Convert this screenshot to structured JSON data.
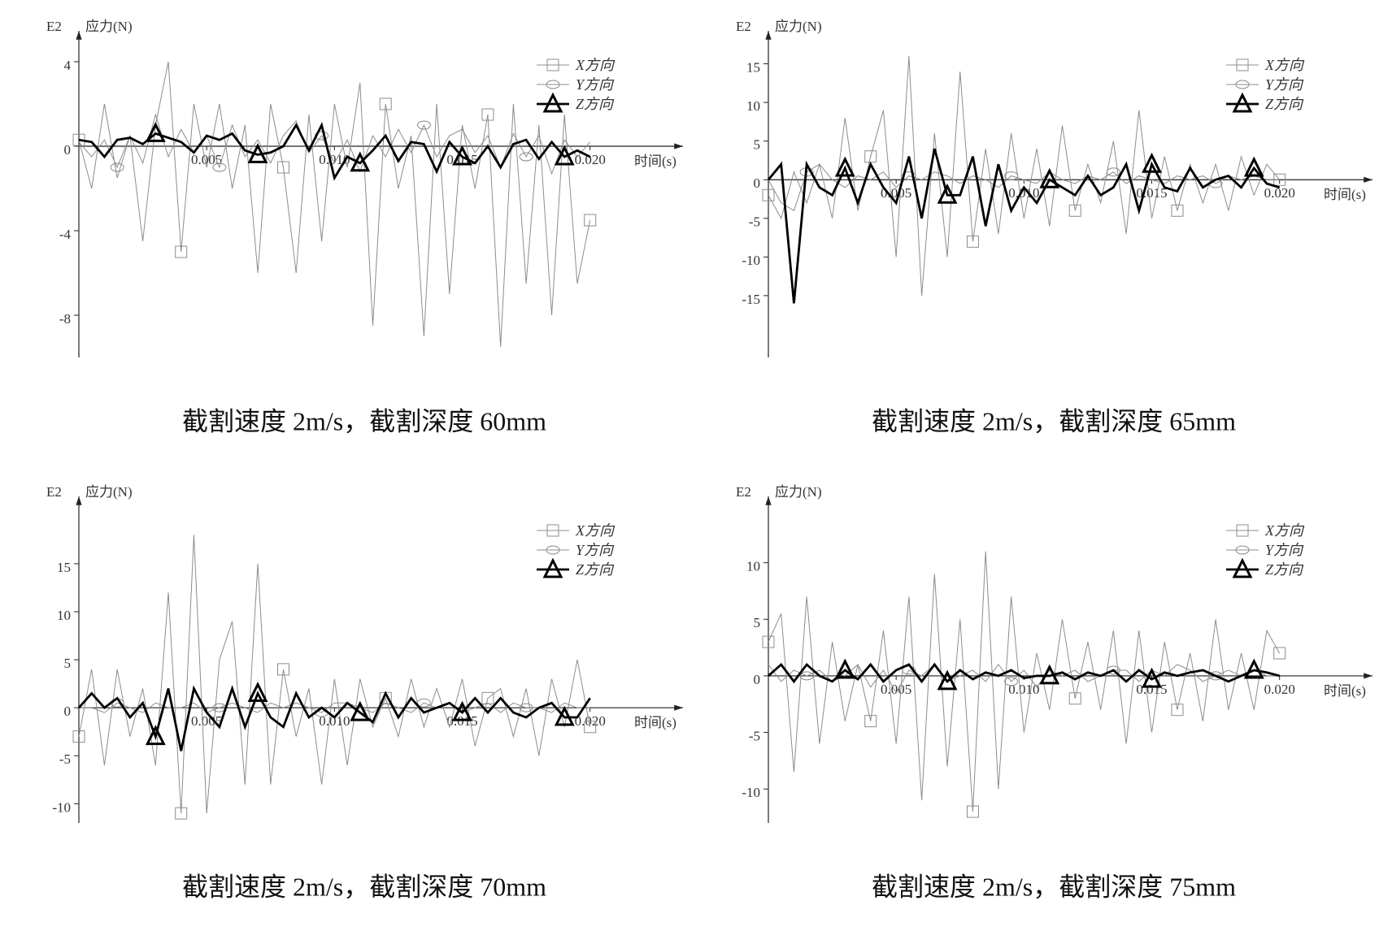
{
  "chart_data": [
    {
      "type": "line",
      "caption": "截割速度 2m/s，截割深度 60mm",
      "y_unit": "E2",
      "ylabel": "应力(N)",
      "xlabel": "时间(s)",
      "legend": "upper right",
      "x": [
        0,
        0.0005,
        0.001,
        0.0015,
        0.002,
        0.0025,
        0.003,
        0.0035,
        0.004,
        0.0045,
        0.005,
        0.0055,
        0.006,
        0.0065,
        0.007,
        0.0075,
        0.008,
        0.0085,
        0.009,
        0.0095,
        0.01,
        0.0105,
        0.011,
        0.0115,
        0.012,
        0.0125,
        0.013,
        0.0135,
        0.014,
        0.0145,
        0.015,
        0.0155,
        0.016,
        0.0165,
        0.017,
        0.0175,
        0.018,
        0.0185,
        0.019,
        0.0195,
        0.02
      ],
      "xlim": [
        0,
        0.023
      ],
      "xticks": [
        0.005,
        {
          "value": 0.01,
          "label": "0.010"
        },
        0.015,
        {
          "value": 0.02,
          "label": "0.020"
        }
      ],
      "ylim": [
        -10,
        5
      ],
      "yticks": [
        4,
        0,
        -4,
        -8
      ],
      "series": [
        {
          "name": "X方向",
          "color": "#8c8c8c",
          "marker": "square",
          "values": [
            0.3,
            -2,
            2,
            -1.5,
            0.5,
            -4.5,
            1,
            4,
            -5,
            2,
            -1,
            2,
            -2,
            1,
            -6,
            2,
            -1,
            -6,
            1.5,
            -4.5,
            2,
            -1,
            3,
            -8.5,
            2,
            -2,
            0.5,
            -9,
            2,
            -7,
            1,
            -2,
            1.5,
            -9.5,
            2,
            -6.5,
            1,
            -8,
            1.5,
            -6.5,
            -3.5
          ]
        },
        {
          "name": "Y方向",
          "color": "#8c8c8c",
          "marker": "circle",
          "values": [
            0.2,
            -0.5,
            0.3,
            -1,
            0.5,
            -0.8,
            1.5,
            -0.5,
            0.8,
            -0.3,
            0.5,
            -1,
            1,
            -0.5,
            0.3,
            -0.8,
            0.5,
            1.2,
            -0.3,
            0.5,
            -0.8,
            0.3,
            -1.2,
            0.5,
            -0.5,
            0.8,
            -0.3,
            1,
            -0.5,
            0.5,
            0.8,
            -0.3,
            0.5,
            -1,
            0.6,
            -0.5,
            0.5,
            -1.3,
            0.3,
            -0.5,
            0.2
          ]
        },
        {
          "name": "Z方向",
          "color": "#000000",
          "marker": "triangle",
          "values": [
            0.3,
            0.2,
            -0.5,
            0.3,
            0.4,
            0.1,
            0.6,
            0.4,
            0.2,
            -0.3,
            0.5,
            0.3,
            0.6,
            -0.2,
            -0.4,
            -0.3,
            0,
            1,
            -0.2,
            1,
            -1.5,
            -0.5,
            -0.8,
            -0.2,
            0.5,
            -0.7,
            0.2,
            0.1,
            -1.2,
            0.2,
            -0.5,
            -0.8,
            0,
            -1,
            0.1,
            0.3,
            -0.6,
            0.2,
            -0.5,
            -0.2,
            -0.5
          ]
        }
      ]
    },
    {
      "type": "line",
      "caption": "截割速度 2m/s，截割深度 65mm",
      "y_unit": "E2",
      "ylabel": "应力(N)",
      "xlabel": "时间(s)",
      "legend": "upper right",
      "x": [
        0,
        0.0005,
        0.001,
        0.0015,
        0.002,
        0.0025,
        0.003,
        0.0035,
        0.004,
        0.0045,
        0.005,
        0.0055,
        0.006,
        0.0065,
        0.007,
        0.0075,
        0.008,
        0.0085,
        0.009,
        0.0095,
        0.01,
        0.0105,
        0.011,
        0.0115,
        0.012,
        0.0125,
        0.013,
        0.0135,
        0.014,
        0.0145,
        0.015,
        0.0155,
        0.016,
        0.0165,
        0.017,
        0.0175,
        0.018,
        0.0185,
        0.019,
        0.0195,
        0.02
      ],
      "xlim": [
        0,
        0.023
      ],
      "xticks": [
        0.005,
        {
          "value": 0.01,
          "label": "0.010"
        },
        0.015,
        {
          "value": 0.02,
          "label": "0.020"
        }
      ],
      "ylim": [
        -23,
        18
      ],
      "yticks": [
        15,
        10,
        5,
        0,
        -5,
        -10,
        -15
      ],
      "series": [
        {
          "name": "X方向",
          "color": "#8c8c8c",
          "marker": "square",
          "values": [
            -2,
            -5,
            1,
            -3,
            2,
            -5,
            8,
            -4,
            3,
            9,
            -10,
            16,
            -15,
            6,
            -10,
            14,
            -8,
            4,
            -7,
            6,
            -5,
            4,
            -6,
            7,
            -4,
            2,
            -3,
            5,
            -7,
            9,
            -5,
            3,
            -4,
            2,
            -3,
            2,
            -4,
            3,
            -2,
            2,
            0
          ]
        },
        {
          "name": "Y方向",
          "color": "#8c8c8c",
          "marker": "circle",
          "values": [
            0,
            -3,
            -4,
            1,
            2,
            0,
            -1,
            0.5,
            0,
            1,
            -1,
            0.5,
            0,
            1,
            0.5,
            -0.5,
            0.5,
            0,
            -1,
            0.5,
            0,
            -0.5,
            1,
            0,
            -0.5,
            0.5,
            0,
            1,
            -0.5,
            0.5,
            0,
            -0.5,
            0.5,
            0,
            0.5,
            -0.5,
            0.5,
            0,
            0.5,
            0,
            0
          ]
        },
        {
          "name": "Z方向",
          "color": "#000000",
          "marker": "triangle",
          "values": [
            0,
            2,
            -16,
            2,
            -1,
            -2,
            1.5,
            -3,
            2,
            -1,
            -3,
            3,
            -5,
            4,
            -2,
            -2,
            3,
            -6,
            2,
            -4,
            -1,
            -3,
            0,
            -1,
            -2,
            0.5,
            -2,
            -1,
            2,
            -4,
            2,
            -1,
            -1.5,
            1.5,
            -1,
            0,
            0.5,
            -1,
            1.5,
            -0.5,
            -1
          ]
        }
      ]
    },
    {
      "type": "line",
      "caption": "截割速度 2m/s，截割深度 70mm",
      "y_unit": "E2",
      "ylabel": "应力(N)",
      "xlabel": "时间(s)",
      "legend": "upper right",
      "x": [
        0,
        0.0005,
        0.001,
        0.0015,
        0.002,
        0.0025,
        0.003,
        0.0035,
        0.004,
        0.0045,
        0.005,
        0.0055,
        0.006,
        0.0065,
        0.007,
        0.0075,
        0.008,
        0.0085,
        0.009,
        0.0095,
        0.01,
        0.0105,
        0.011,
        0.0115,
        0.012,
        0.0125,
        0.013,
        0.0135,
        0.014,
        0.0145,
        0.015,
        0.0155,
        0.016,
        0.0165,
        0.017,
        0.0175,
        0.018,
        0.0185,
        0.019,
        0.0195,
        0.02
      ],
      "xlim": [
        0,
        0.023
      ],
      "xticks": [
        0.005,
        {
          "value": 0.01,
          "label": "0.010"
        },
        0.015,
        {
          "value": 0.02,
          "label": "0.020"
        }
      ],
      "ylim": [
        -12,
        21
      ],
      "yticks": [
        15,
        10,
        5,
        0,
        -5,
        -10
      ],
      "series": [
        {
          "name": "X方向",
          "color": "#8c8c8c",
          "marker": "square",
          "values": [
            -3,
            4,
            -6,
            4,
            -3,
            2,
            -6,
            12,
            -11,
            18,
            -11,
            5,
            9,
            -8,
            15,
            -8,
            4,
            -3,
            2,
            -8,
            3,
            -6,
            3,
            -2,
            1,
            -3,
            3,
            -2,
            2,
            -2,
            3,
            -4,
            1,
            2,
            -3,
            2,
            -5,
            3,
            -2,
            5,
            -2
          ]
        },
        {
          "name": "Y方向",
          "color": "#8c8c8c",
          "marker": "circle",
          "values": [
            0,
            0,
            -0.5,
            0.5,
            0,
            -0.5,
            0.5,
            0,
            0,
            0.5,
            -0.5,
            0,
            0.5,
            0,
            -0.5,
            0.5,
            0,
            0.5,
            0,
            -0.5,
            0.5,
            0.5,
            0,
            -0.5,
            0.5,
            0,
            -0.5,
            0.5,
            0,
            0.5,
            -0.5,
            0,
            0.5,
            -0.5,
            0.5,
            0,
            0,
            -0.5,
            0.5,
            0,
            0
          ]
        },
        {
          "name": "Z方向",
          "color": "#000000",
          "marker": "triangle",
          "values": [
            0,
            1.5,
            0,
            1,
            -1,
            0.5,
            -3,
            2,
            -4.5,
            2,
            -0.5,
            -2,
            2,
            -2,
            1.5,
            -1,
            -2,
            1.5,
            -1,
            0,
            -1,
            0.5,
            -0.5,
            -1.5,
            1.5,
            -1,
            1,
            -0.5,
            0,
            0.5,
            -0.5,
            1,
            -0.5,
            1,
            -0.5,
            -1,
            0,
            0.5,
            -1,
            -1,
            1
          ]
        }
      ]
    },
    {
      "type": "line",
      "caption": "截割速度 2m/s，截割深度 75mm",
      "y_unit": "E2",
      "ylabel": "应力(N)",
      "xlabel": "时间(s)",
      "legend": "upper right",
      "x": [
        0,
        0.0005,
        0.001,
        0.0015,
        0.002,
        0.0025,
        0.003,
        0.0035,
        0.004,
        0.0045,
        0.005,
        0.0055,
        0.006,
        0.0065,
        0.007,
        0.0075,
        0.008,
        0.0085,
        0.009,
        0.0095,
        0.01,
        0.0105,
        0.011,
        0.0115,
        0.012,
        0.0125,
        0.013,
        0.0135,
        0.014,
        0.0145,
        0.015,
        0.0155,
        0.016,
        0.0165,
        0.017,
        0.0175,
        0.018,
        0.0185,
        0.019,
        0.0195,
        0.02
      ],
      "xlim": [
        0,
        0.023
      ],
      "xticks": [
        0.005,
        {
          "value": 0.01,
          "label": "0.010"
        },
        0.015,
        {
          "value": 0.02,
          "label": "0.020"
        }
      ],
      "ylim": [
        -13,
        15
      ],
      "yticks": [
        10,
        5,
        0,
        -5,
        -10
      ],
      "series": [
        {
          "name": "X方向",
          "color": "#8c8c8c",
          "marker": "square",
          "values": [
            3,
            5.5,
            -8.5,
            7,
            -6,
            3,
            -4,
            1,
            -4,
            4,
            -6,
            7,
            -11,
            9,
            -8,
            5,
            -12,
            11,
            -10,
            7,
            -5,
            2,
            -3,
            5,
            -2,
            3,
            -3,
            4,
            -6,
            4,
            -5,
            3,
            -3,
            2,
            -4,
            5,
            -3,
            2,
            -3,
            4,
            2
          ]
        },
        {
          "name": "Y方向",
          "color": "#8c8c8c",
          "marker": "circle",
          "values": [
            1,
            -0.5,
            0.5,
            0,
            0.5,
            -0.5,
            0,
            1,
            -1,
            0.5,
            -1.5,
            0.5,
            0,
            1,
            -0.5,
            0,
            0.5,
            -0.5,
            1,
            -0.5,
            0.5,
            -1,
            0.5,
            0,
            0.5,
            -0.5,
            0,
            0.5,
            0.5,
            -0.5,
            0.5,
            0,
            1,
            0.5,
            -0.5,
            0,
            0.5,
            0,
            0.5,
            0,
            0
          ]
        },
        {
          "name": "Z方向",
          "color": "#000000",
          "marker": "triangle",
          "values": [
            0,
            1,
            -0.5,
            1,
            0,
            -0.5,
            0.5,
            -0.3,
            1,
            -0.5,
            0.5,
            1,
            -0.5,
            1,
            -0.5,
            0.5,
            -0.3,
            0.3,
            0,
            0.5,
            -0.2,
            0,
            0,
            0.3,
            -0.3,
            0.3,
            0,
            0.5,
            -0.5,
            0.5,
            -0.3,
            0.3,
            0,
            0.3,
            0.5,
            0,
            -0.5,
            0,
            0.5,
            0.3,
            0
          ]
        }
      ]
    }
  ]
}
